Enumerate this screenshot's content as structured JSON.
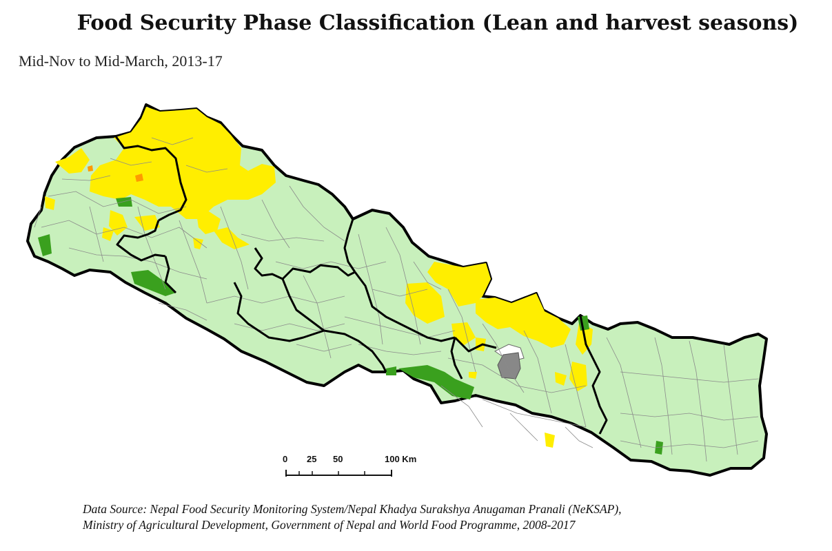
{
  "title": "Food Security Phase Classification (Lean and harvest seasons)",
  "subtitle": "Mid-Nov to Mid-March, 2013-17",
  "scale_bar": {
    "ticks": [
      "0",
      "25",
      "50",
      "100 Km"
    ]
  },
  "source": {
    "line1": "Data Source: Nepal Food Security Monitoring System/Nepal Khadya Surakshya Anugaman Pranali (NeKSAP),",
    "line2": "Ministry of Agricultural Development, Government of Nepal and World Food Programme, 2008-2017"
  },
  "colors": {
    "minimal_phase_fill": "#c8f0bc",
    "stressed_phase_fill": "#ffee00",
    "crisis_phase_fill": "#ff9a00",
    "protected_area_fill": "#3aa01e",
    "no_data_fill": "#888888",
    "district_line": "#8a8a8a",
    "region_border": "#000000",
    "background": "#ffffff"
  }
}
